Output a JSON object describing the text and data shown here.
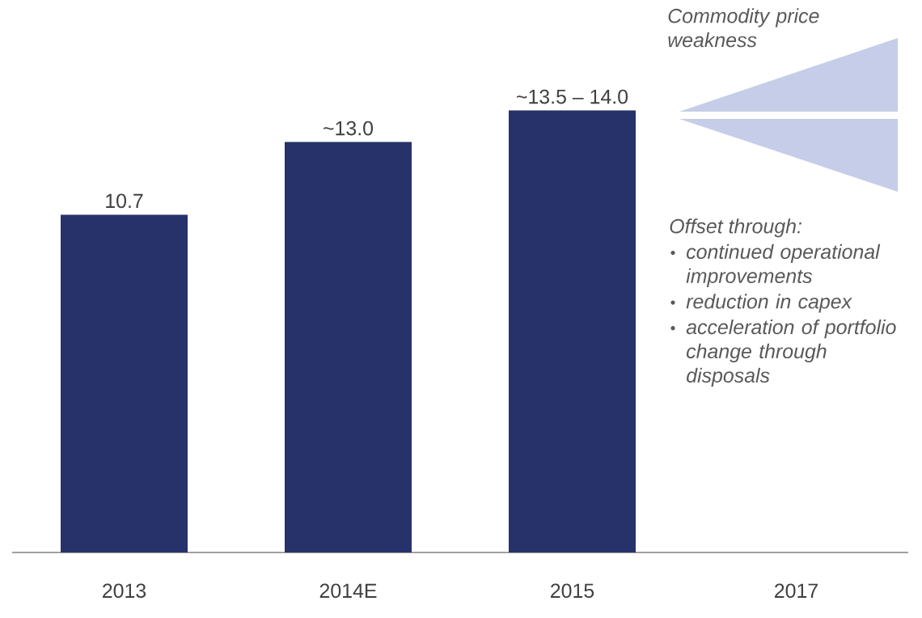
{
  "chart_data": {
    "type": "bar",
    "categories": [
      "2013",
      "2014E",
      "2015",
      "2017"
    ],
    "values": [
      10.7,
      13.0,
      14.0,
      null
    ],
    "value_labels": [
      "10.7",
      "~13.0",
      "~13.5 – 14.0",
      null
    ],
    "color": "#263269",
    "annotations": [
      "Commodity price weakness",
      "Offset through:",
      "continued operational improvements",
      "reduction in capex",
      "acceleration of portfolio change through disposals"
    ]
  }
}
